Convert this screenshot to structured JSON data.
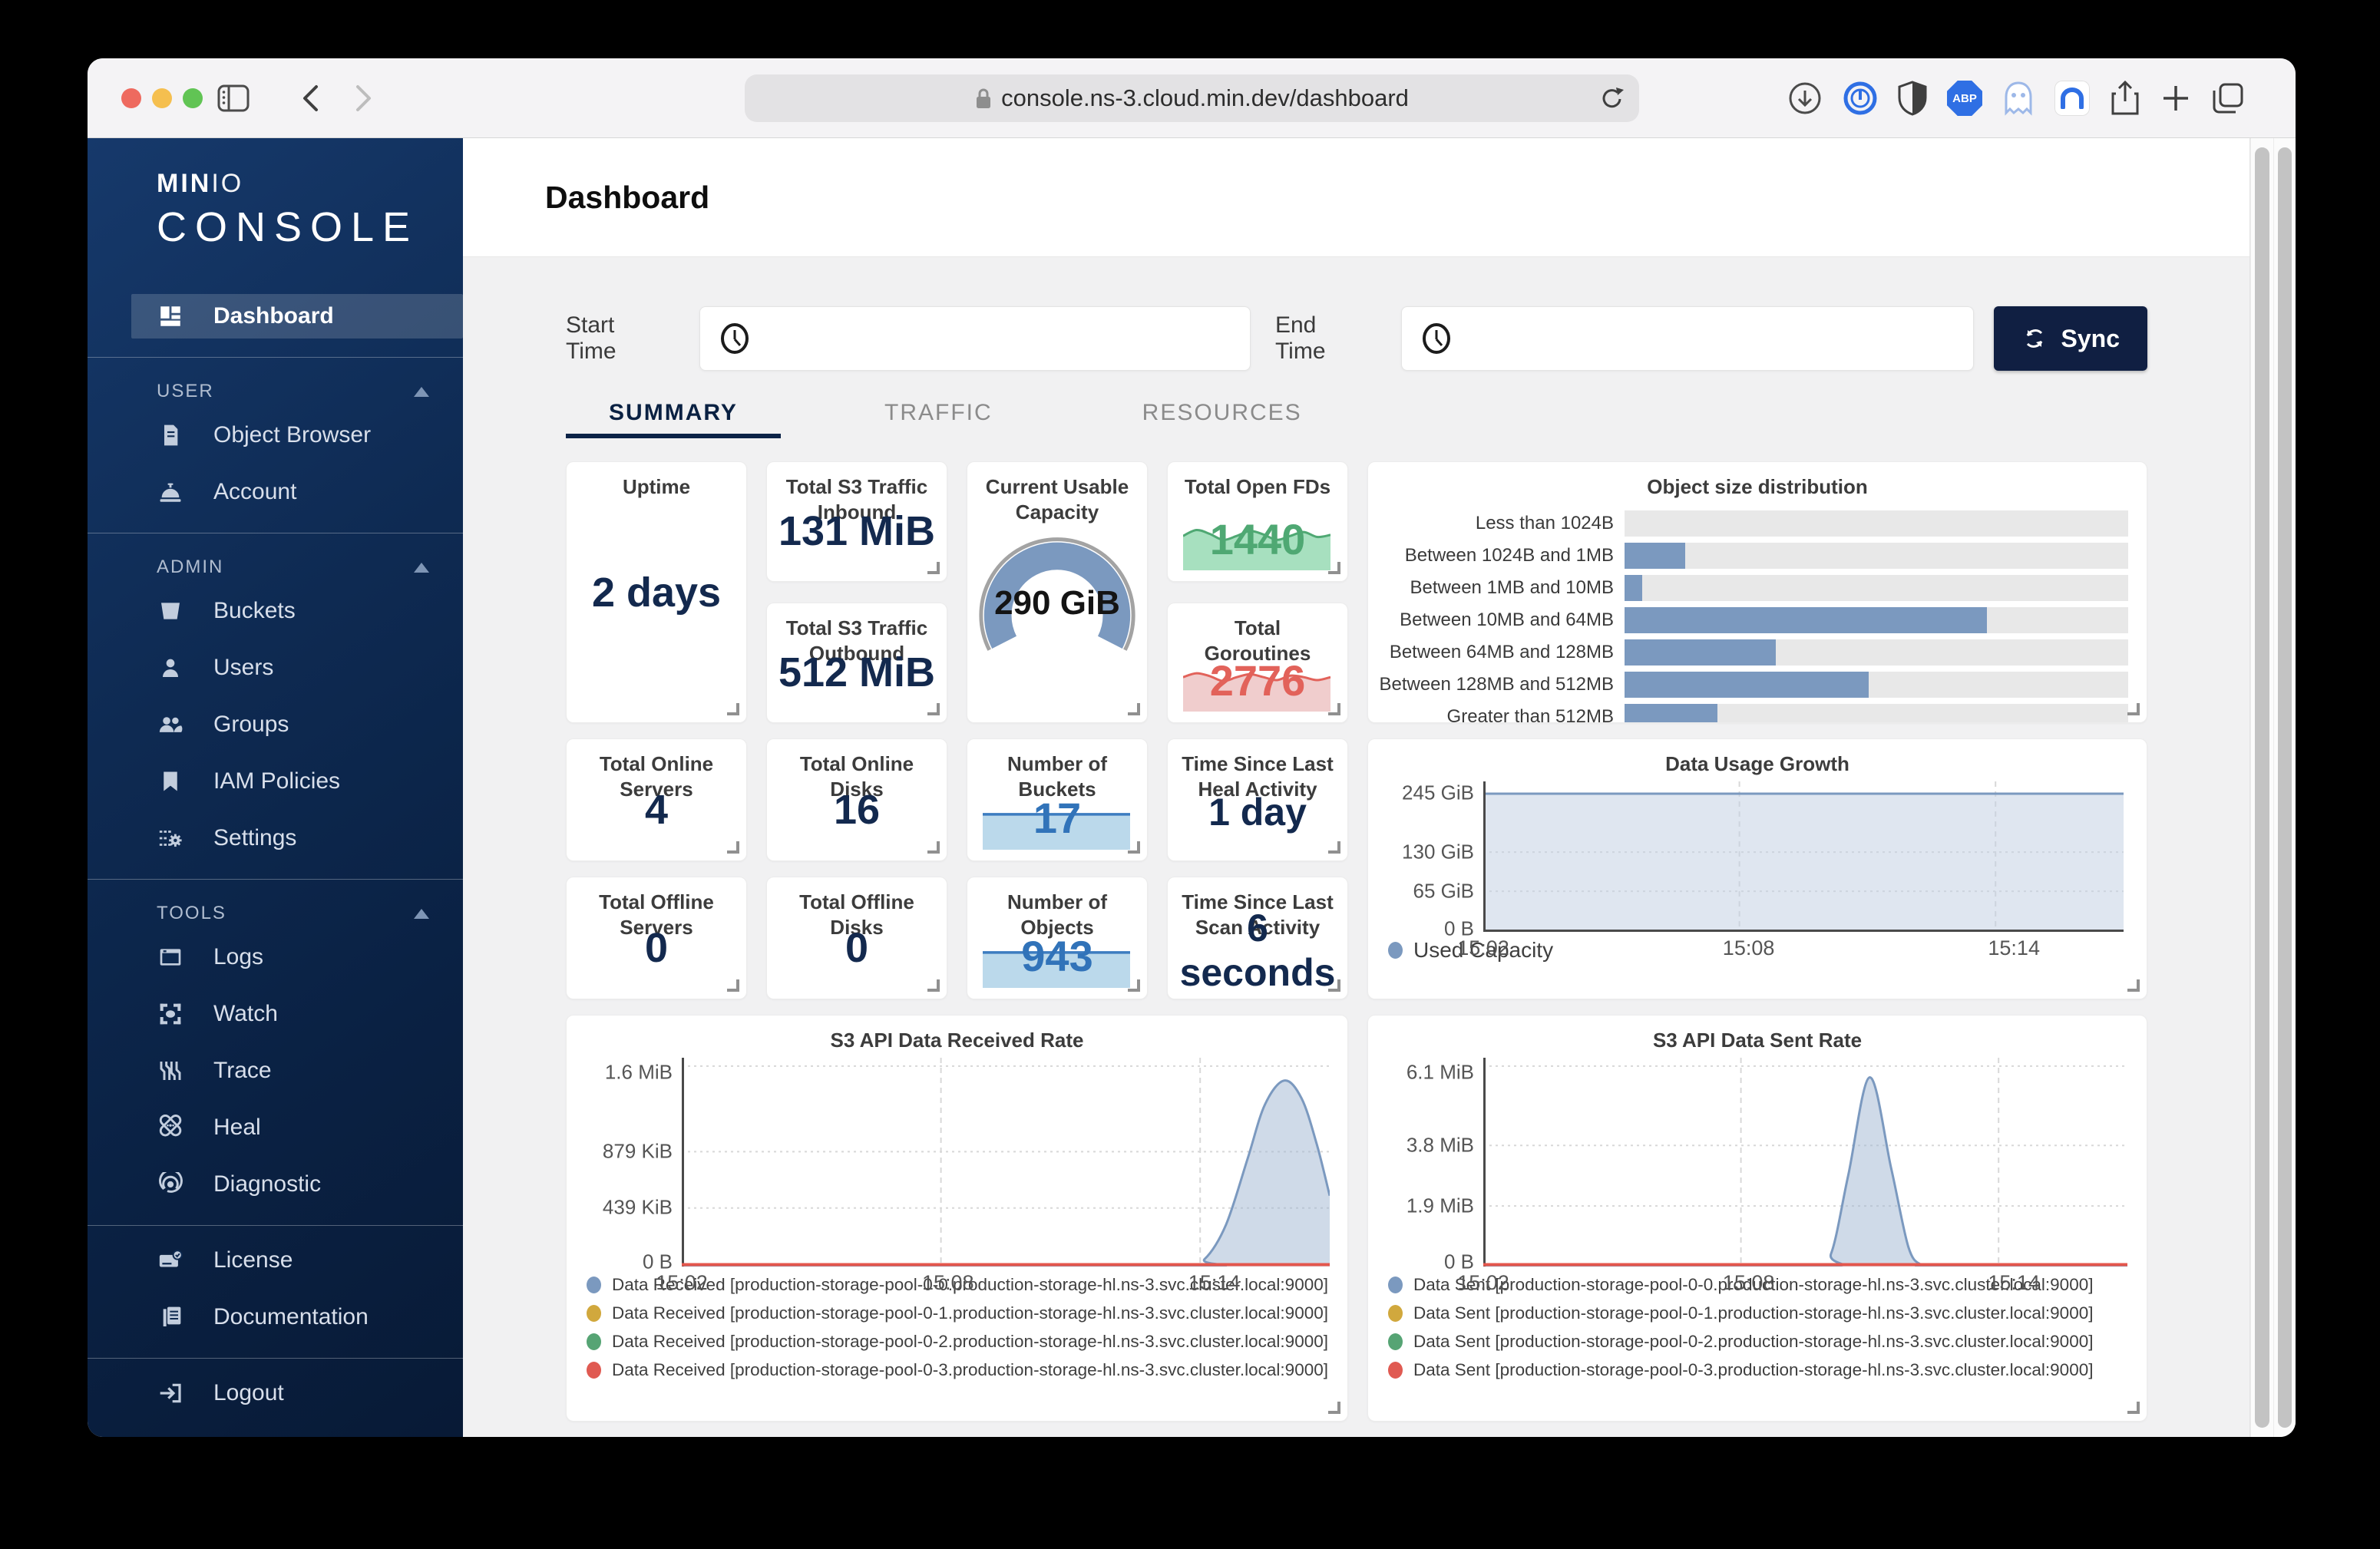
{
  "browser": {
    "url": "console.ns-3.cloud.min.dev/dashboard",
    "abp_label": "ABP",
    "toolbar_icons": [
      "sidebar-panel",
      "back",
      "forward",
      "reload",
      "downloads",
      "blocker",
      "shield",
      "adblock-plus",
      "ghostery",
      "browser-app",
      "share",
      "new-tab",
      "tab-overview"
    ]
  },
  "sidebar": {
    "logo_min": "MIN",
    "logo_io": "IO",
    "logo_console": "CONSOLE",
    "dashboard_label": "Dashboard",
    "sections": [
      {
        "title": "USER",
        "items": [
          {
            "label": "Object Browser"
          },
          {
            "label": "Account"
          }
        ]
      },
      {
        "title": "ADMIN",
        "items": [
          {
            "label": "Buckets"
          },
          {
            "label": "Users"
          },
          {
            "label": "Groups"
          },
          {
            "label": "IAM Policies"
          },
          {
            "label": "Settings"
          }
        ]
      },
      {
        "title": "TOOLS",
        "items": [
          {
            "label": "Logs"
          },
          {
            "label": "Watch"
          },
          {
            "label": "Trace"
          },
          {
            "label": "Heal"
          },
          {
            "label": "Diagnostic"
          }
        ]
      }
    ],
    "footer_items": [
      {
        "label": "License"
      },
      {
        "label": "Documentation"
      }
    ],
    "logout_label": "Logout"
  },
  "page": {
    "title": "Dashboard"
  },
  "filters": {
    "start_label": "Start Time",
    "start_value": "",
    "end_label": "End Time",
    "end_value": "",
    "sync_label": "Sync"
  },
  "tabs": [
    {
      "label": "SUMMARY",
      "active": true
    },
    {
      "label": "TRAFFIC",
      "active": false
    },
    {
      "label": "RESOURCES",
      "active": false
    }
  ],
  "stats": {
    "uptime": {
      "title": "Uptime",
      "value": "2 days"
    },
    "s3_in": {
      "title": "Total S3 Traffic Inbound",
      "value": "131 MiB"
    },
    "s3_out": {
      "title": "Total S3 Traffic Outbound",
      "value": "512 MiB"
    },
    "capacity": {
      "title": "Current Usable Capacity",
      "value": "290 GiB"
    },
    "open_fds": {
      "title": "Total Open FDs",
      "value": "1440",
      "color": "#4fa873"
    },
    "goroutines": {
      "title": "Total Goroutines",
      "value": "2776",
      "color": "#e2625a"
    },
    "online_servers": {
      "title": "Total Online Servers",
      "value": "4"
    },
    "online_disks": {
      "title": "Total Online Disks",
      "value": "16"
    },
    "buckets": {
      "title": "Number of Buckets",
      "value": "17",
      "color": "#3173b9"
    },
    "heal": {
      "title": "Time Since Last Heal Activity",
      "value": "1 day"
    },
    "offline_servers": {
      "title": "Total Offline Servers",
      "value": "0"
    },
    "offline_disks": {
      "title": "Total Offline Disks",
      "value": "0"
    },
    "objects": {
      "title": "Number of Objects",
      "value": "943",
      "color": "#3173b9"
    },
    "scan": {
      "title": "Time Since Last Scan Activity",
      "value": "6 seconds"
    }
  },
  "colors": {
    "accent_navy": "#101f42",
    "steel_blue": "#7b99bf",
    "baseline_red": "#e4574d",
    "green": "#4fa873",
    "red": "#e2625a",
    "bucket_blue": "#3c7cc0",
    "track_gray": "#e8e8e8"
  },
  "sparklines": {
    "open_fds": [
      0.3,
      0.18,
      0.26,
      0.38,
      0.3,
      0.2,
      0.27,
      0.38,
      0.3,
      0.22,
      0.32,
      0.28
    ],
    "goroutines": [
      0.3,
      0.22,
      0.28,
      0.38,
      0.3,
      0.24,
      0.3,
      0.36,
      0.27,
      0.3,
      0.36,
      0.3
    ],
    "buckets": [
      0.28,
      0.28
    ],
    "objects": [
      0.28,
      0.28
    ]
  },
  "chart_data": [
    {
      "id": "object_size_distribution",
      "type": "bar",
      "title": "Object size distribution",
      "orientation": "horizontal",
      "categories": [
        "Less than 1024B",
        "Between 1024B and 1MB",
        "Between 1MB and 10MB",
        "Between 10MB and 64MB",
        "Between 64MB and 128MB",
        "Between 128MB and 512MB",
        "Greater than 512MB"
      ],
      "values": [
        0,
        12,
        3.5,
        72,
        30,
        48.5,
        18.5
      ],
      "value_unit": "percent_of_axis",
      "bar_color": "#7b99bf",
      "grid": false,
      "legend_position": "none"
    },
    {
      "id": "data_usage_growth",
      "type": "area",
      "title": "Data Usage Growth",
      "yticks": [
        "245 GiB",
        "130 GiB",
        "65 GiB",
        "0 B"
      ],
      "xticks": [
        "15:02",
        "15:08",
        "15:14"
      ],
      "x_domain_minutes": 15,
      "y_axis_max": 258,
      "y_unit": "GiB",
      "grid": true,
      "legend_position": "bottom-left",
      "series": [
        {
          "name": "Used Capacity",
          "color": "#7b99bf",
          "points": [
            [
              0,
              237
            ],
            [
              15,
              237
            ]
          ]
        }
      ],
      "legend": [
        {
          "label": "Used Capacity",
          "color": "#7b99bf"
        }
      ]
    },
    {
      "id": "s3_api_data_received_rate",
      "type": "area",
      "title": "S3 API Data Received Rate",
      "yticks": [
        "1.6 MiB",
        "879 KiB",
        "439 KiB",
        "0 B"
      ],
      "xticks": [
        "15:02",
        "15:08",
        "15:14"
      ],
      "x_domain_minutes": 15,
      "y_axis_max": 1740,
      "y_unit": "KiB",
      "baseline_color": "#e4574d",
      "grid": true,
      "legend_position": "bottom-left",
      "series": [
        {
          "name": "Data Received pool-0-0",
          "color": "#7b99bf",
          "points": [
            [
              0,
              0
            ],
            [
              11.6,
              0
            ],
            [
              12.1,
              60
            ],
            [
              12.6,
              350
            ],
            [
              13.1,
              900
            ],
            [
              13.5,
              1350
            ],
            [
              13.95,
              1550
            ],
            [
              14.35,
              1400
            ],
            [
              14.7,
              1020
            ],
            [
              15,
              590
            ]
          ]
        }
      ],
      "legend": [
        {
          "label": "Data Received [production-storage-pool-0-0.production-storage-hl.ns-3.svc.cluster.local:9000]",
          "color": "#7b99bf"
        },
        {
          "label": "Data Received [production-storage-pool-0-1.production-storage-hl.ns-3.svc.cluster.local:9000]",
          "color": "#d1a83d"
        },
        {
          "label": "Data Received [production-storage-pool-0-2.production-storage-hl.ns-3.svc.cluster.local:9000]",
          "color": "#56a474"
        },
        {
          "label": "Data Received [production-storage-pool-0-3.production-storage-hl.ns-3.svc.cluster.local:9000]",
          "color": "#e05a52"
        }
      ]
    },
    {
      "id": "s3_api_data_sent_rate",
      "type": "area",
      "title": "S3 API Data Sent Rate",
      "yticks": [
        "6.1 MiB",
        "3.8 MiB",
        "1.9 MiB",
        "0 B"
      ],
      "xticks": [
        "15:02",
        "15:08",
        "15:14"
      ],
      "x_domain_minutes": 15,
      "y_axis_max": 6.4,
      "y_unit": "MiB",
      "baseline_color": "#e4574d",
      "grid": true,
      "legend_position": "bottom-left",
      "series": [
        {
          "name": "Data Sent pool-0-0",
          "color": "#7b99bf",
          "points": [
            [
              0,
              0
            ],
            [
              7.7,
              0
            ],
            [
              8.1,
              0.4
            ],
            [
              8.5,
              2.8
            ],
            [
              9.0,
              5.8
            ],
            [
              9.5,
              3.0
            ],
            [
              9.9,
              0.6
            ],
            [
              10.2,
              0.05
            ],
            [
              10.5,
              0
            ],
            [
              15,
              0
            ]
          ]
        }
      ],
      "legend": [
        {
          "label": "Data Sent [production-storage-pool-0-0.production-storage-hl.ns-3.svc.cluster.local:9000]",
          "color": "#7b99bf"
        },
        {
          "label": "Data Sent [production-storage-pool-0-1.production-storage-hl.ns-3.svc.cluster.local:9000]",
          "color": "#d1a83d"
        },
        {
          "label": "Data Sent [production-storage-pool-0-2.production-storage-hl.ns-3.svc.cluster.local:9000]",
          "color": "#56a474"
        },
        {
          "label": "Data Sent [production-storage-pool-0-3.production-storage-hl.ns-3.svc.cluster.local:9000]",
          "color": "#e05a52"
        }
      ]
    }
  ]
}
